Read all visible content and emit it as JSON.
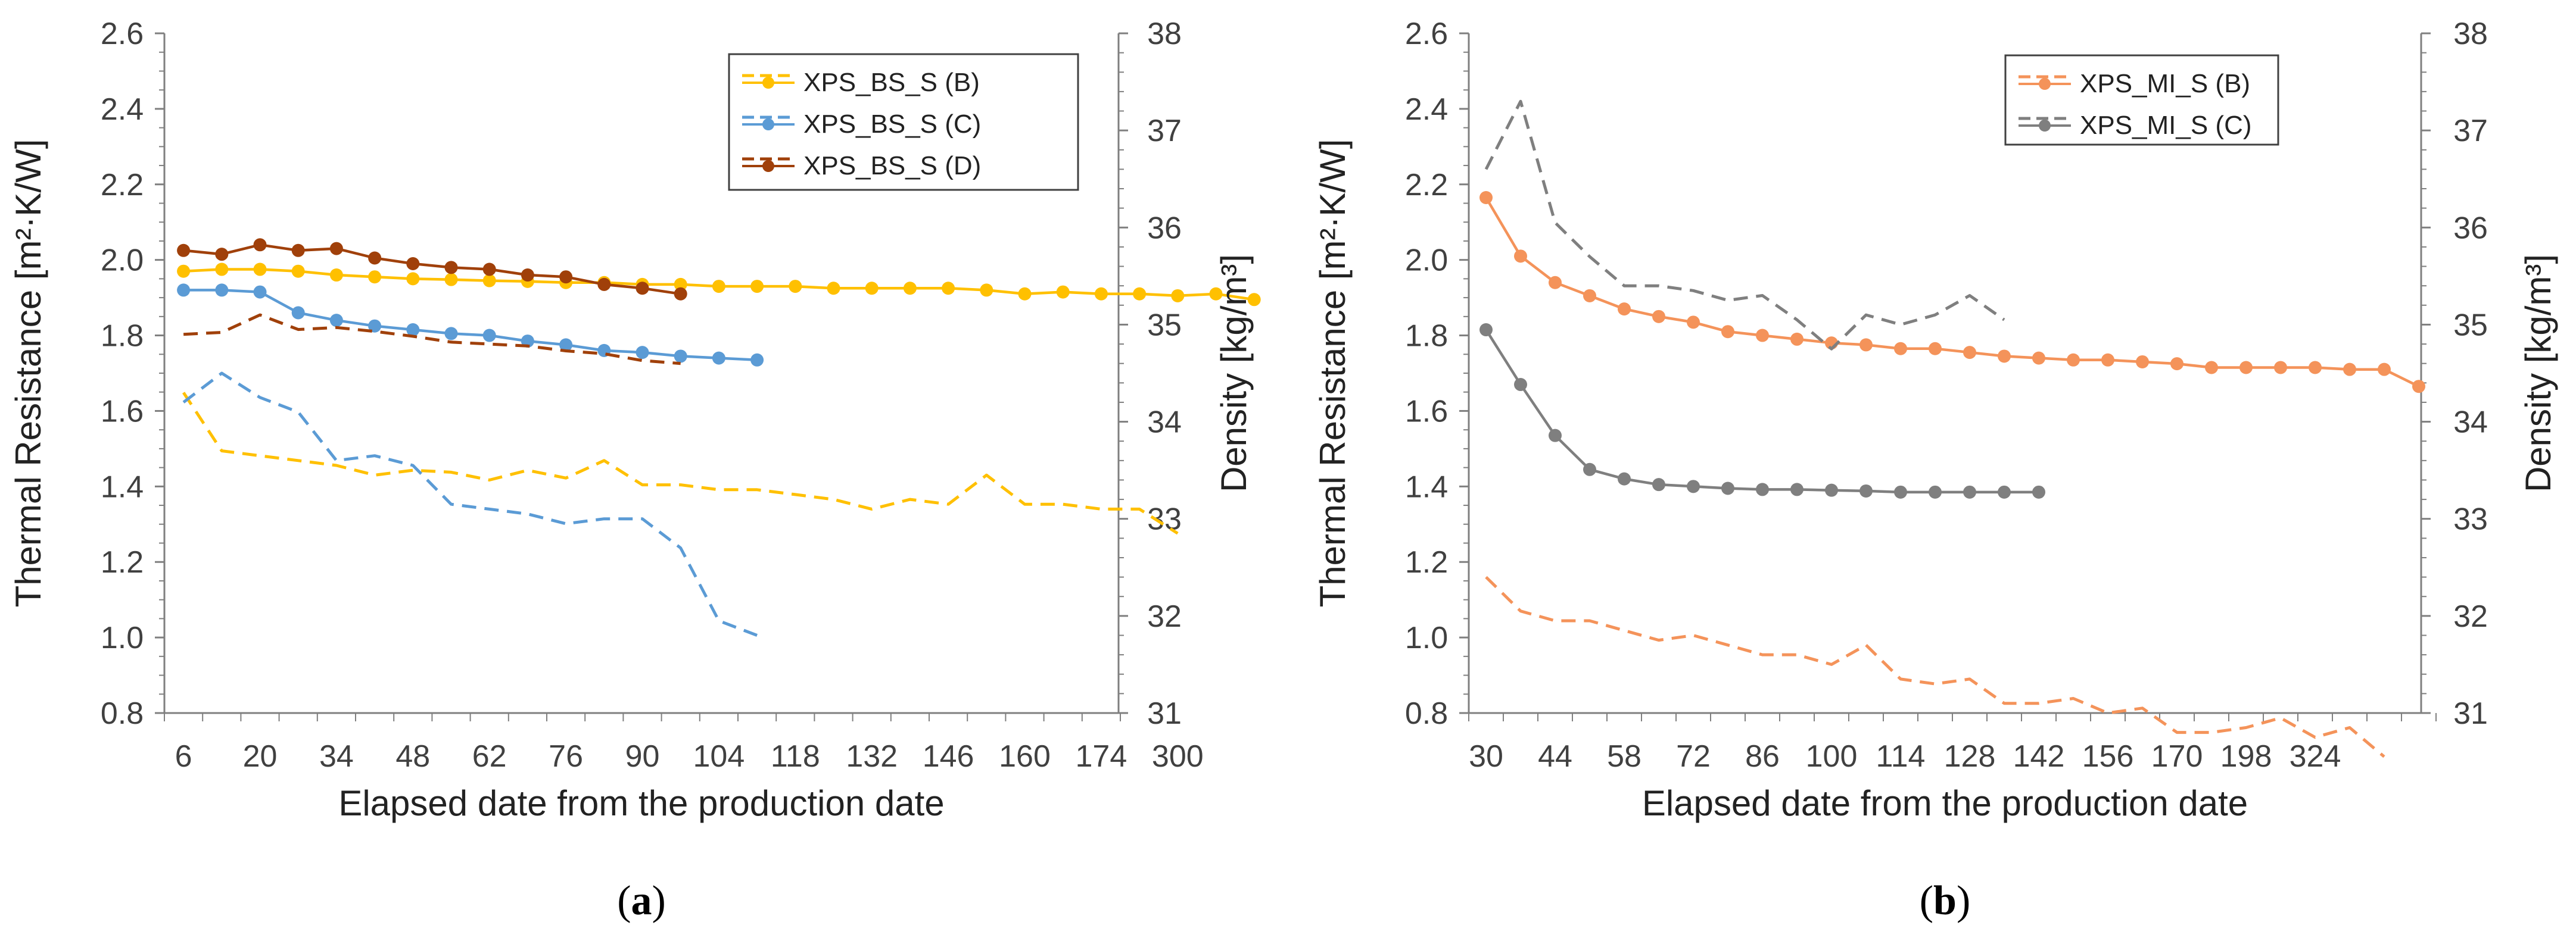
{
  "chart_data": [
    {
      "type": "line",
      "panel_label": "a",
      "title": "",
      "xlabel": "Elapsed date from the production date",
      "ylabel": "Thermal Resistance [m²·K/W]",
      "ylabel_right": "Density [kg/m³]",
      "x_tick_labels": [
        "6",
        "20",
        "34",
        "48",
        "62",
        "76",
        "90",
        "104",
        "118",
        "132",
        "146",
        "160",
        "174",
        "300"
      ],
      "ylim": [
        0.8,
        2.6
      ],
      "y_ticks": [
        "0.8",
        "1.0",
        "1.2",
        "1.4",
        "1.6",
        "1.8",
        "2.0",
        "2.2",
        "2.4",
        "2.6"
      ],
      "ylim_right": [
        31,
        38
      ],
      "y2_ticks": [
        "31",
        "32",
        "33",
        "34",
        "35",
        "36",
        "37",
        "38"
      ],
      "legend_position": "top-right",
      "legend": [
        "XPS_BS_S (B)",
        "XPS_BS_S (C)",
        "XPS_BS_S (D)"
      ],
      "series": [
        {
          "name": "XPS_BS_S (B)",
          "color": "#FFC000",
          "style": "solid",
          "axis": "left",
          "marker": true,
          "values": [
            1.97,
            1.975,
            1.975,
            1.97,
            1.96,
            1.955,
            1.95,
            1.948,
            1.945,
            1.943,
            1.94,
            1.94,
            1.935,
            1.935,
            1.93,
            1.93,
            1.93,
            1.925,
            1.925,
            1.925,
            1.925,
            1.92,
            1.91,
            1.915,
            1.91,
            1.91,
            1.905,
            1.91,
            1.895
          ]
        },
        {
          "name": "XPS_BS_S (B) density",
          "color": "#FFC000",
          "style": "dashed",
          "axis": "right",
          "marker": false,
          "values": [
            34.3,
            33.7,
            33.65,
            33.6,
            33.55,
            33.45,
            33.5,
            33.48,
            33.4,
            33.5,
            33.42,
            33.6,
            33.35,
            33.35,
            33.3,
            33.3,
            33.25,
            33.2,
            33.1,
            33.2,
            33.15,
            33.45,
            33.15,
            33.15,
            33.1,
            33.1,
            32.85
          ]
        },
        {
          "name": "XPS_BS_S (C)",
          "color": "#5B9BD5",
          "style": "solid",
          "axis": "left",
          "marker": true,
          "values": [
            1.92,
            1.92,
            1.915,
            1.86,
            1.84,
            1.825,
            1.815,
            1.805,
            1.8,
            1.785,
            1.775,
            1.76,
            1.755,
            1.745,
            1.74,
            1.735
          ]
        },
        {
          "name": "XPS_BS_S (C) density",
          "color": "#5B9BD5",
          "style": "dashed",
          "axis": "right",
          "marker": false,
          "values": [
            34.2,
            34.5,
            34.25,
            34.1,
            33.6,
            33.65,
            33.55,
            33.15,
            33.1,
            33.05,
            32.95,
            33.0,
            33.0,
            32.7,
            31.95,
            31.8
          ]
        },
        {
          "name": "XPS_BS_S (D)",
          "color": "#A0400A",
          "style": "solid",
          "axis": "left",
          "marker": true,
          "values": [
            2.025,
            2.015,
            2.04,
            2.025,
            2.03,
            2.005,
            1.99,
            1.98,
            1.975,
            1.96,
            1.955,
            1.935,
            1.925,
            1.91
          ]
        },
        {
          "name": "XPS_BS_S (D) density",
          "color": "#A0400A",
          "style": "dashed",
          "axis": "right",
          "marker": false,
          "values": [
            34.9,
            34.92,
            35.1,
            34.95,
            34.97,
            34.93,
            34.88,
            34.82,
            34.8,
            34.78,
            34.73,
            34.7,
            34.63,
            34.6
          ]
        }
      ]
    },
    {
      "type": "line",
      "panel_label": "b",
      "title": "",
      "xlabel": "Elapsed date from the production date",
      "ylabel": "Thermal Resistance [m²·K/W]",
      "ylabel_right": "Density [kg/m³]",
      "x_tick_labels": [
        "30",
        "44",
        "58",
        "72",
        "86",
        "100",
        "114",
        "128",
        "142",
        "156",
        "170",
        "198",
        "324"
      ],
      "ylim": [
        0.8,
        2.6
      ],
      "y_ticks": [
        "0.8",
        "1.0",
        "1.2",
        "1.4",
        "1.6",
        "1.8",
        "2.0",
        "2.2",
        "2.4",
        "2.6"
      ],
      "ylim_right": [
        31,
        38
      ],
      "y2_ticks": [
        "31",
        "32",
        "33",
        "34",
        "35",
        "36",
        "37",
        "38"
      ],
      "legend_position": "top-right",
      "legend": [
        "XPS_MI_S (B)",
        "XPS_MI_S (C)"
      ],
      "series": [
        {
          "name": "XPS_MI_S (B)",
          "color": "#F4935A",
          "style": "solid",
          "axis": "left",
          "marker": true,
          "values": [
            2.165,
            2.01,
            1.94,
            1.905,
            1.87,
            1.85,
            1.835,
            1.81,
            1.8,
            1.79,
            1.78,
            1.775,
            1.765,
            1.765,
            1.755,
            1.745,
            1.74,
            1.735,
            1.735,
            1.73,
            1.725,
            1.715,
            1.715,
            1.715,
            1.715,
            1.71,
            1.71,
            1.665
          ]
        },
        {
          "name": "XPS_MI_S (B) density",
          "color": "#F4935A",
          "style": "dashed",
          "axis": "right",
          "marker": false,
          "values": [
            32.4,
            32.05,
            31.95,
            31.95,
            31.85,
            31.75,
            31.8,
            31.7,
            31.6,
            31.6,
            31.5,
            31.7,
            31.35,
            31.3,
            31.35,
            31.1,
            31.1,
            31.15,
            31.0,
            31.05,
            30.8,
            30.8,
            30.85,
            30.95,
            30.75,
            30.85,
            30.55
          ]
        },
        {
          "name": "XPS_MI_S (C)",
          "color": "#7F7F7F",
          "style": "solid",
          "axis": "left",
          "marker": true,
          "values": [
            1.815,
            1.67,
            1.535,
            1.445,
            1.42,
            1.405,
            1.4,
            1.395,
            1.392,
            1.392,
            1.39,
            1.388,
            1.385,
            1.385,
            1.385,
            1.385,
            1.385
          ]
        },
        {
          "name": "XPS_MI_S (C) density",
          "color": "#7F7F7F",
          "style": "dashed",
          "axis": "right",
          "marker": false,
          "values": [
            36.6,
            37.3,
            36.05,
            35.7,
            35.4,
            35.4,
            35.35,
            35.25,
            35.3,
            35.05,
            34.75,
            35.1,
            35.0,
            35.1,
            35.3,
            35.05
          ]
        }
      ]
    }
  ]
}
